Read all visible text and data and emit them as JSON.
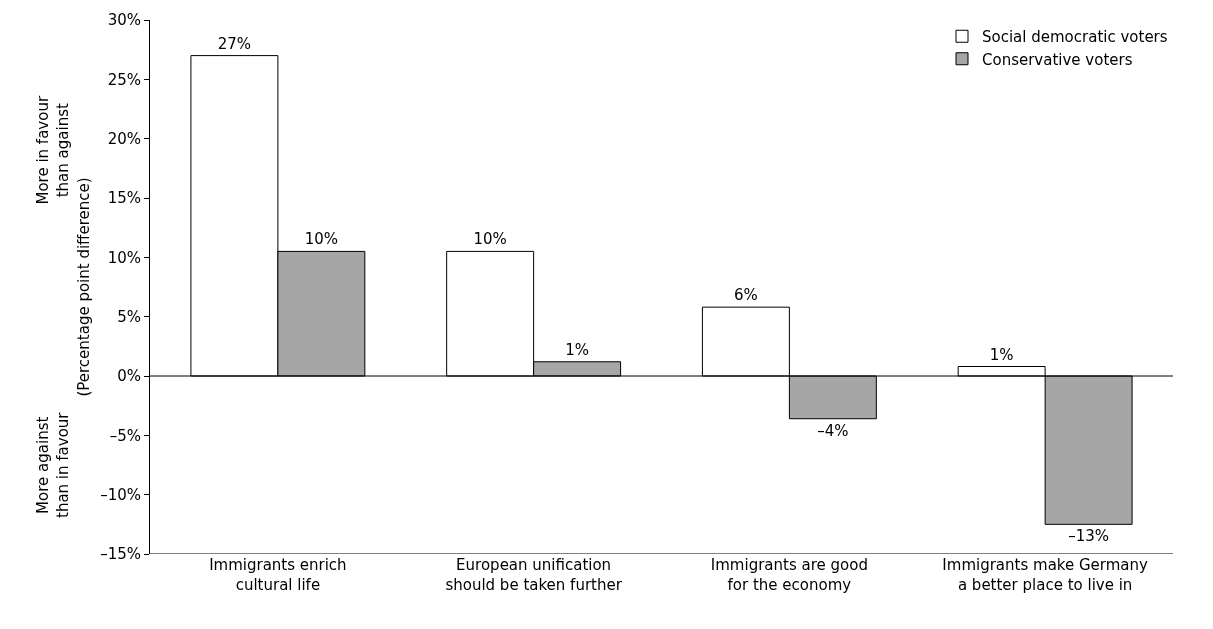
{
  "chart_data": {
    "type": "bar",
    "ylabel": "(Percentage point difference)",
    "annotations": [
      "More in favour\nthan against",
      "More against\nthan in favour"
    ],
    "categories": [
      "Immigrants enrich\ncultural life",
      "European unification\nshould be taken further",
      "Immigrants are good\nfor the economy",
      "Immigrants make Germany\na better place to live in"
    ],
    "series": [
      {
        "name": "Social democratic voters",
        "color": "#ffffff",
        "values": [
          27,
          10.5,
          5.8,
          0.8
        ],
        "value_labels": [
          "27%",
          "10%",
          "6%",
          "1%"
        ]
      },
      {
        "name": "Conservative voters",
        "color": "#a6a6a6",
        "values": [
          10.5,
          1.2,
          -3.6,
          -12.5
        ],
        "value_labels": [
          "10%",
          "1%",
          "–4%",
          "–13%"
        ]
      }
    ],
    "ylim": [
      -15,
      30
    ],
    "yticks": [
      {
        "value": -15,
        "label": "–15%"
      },
      {
        "value": -10,
        "label": "–10%"
      },
      {
        "value": -5,
        "label": "–5%"
      },
      {
        "value": 0,
        "label": "0%"
      },
      {
        "value": 5,
        "label": "5%"
      },
      {
        "value": 10,
        "label": "10%"
      },
      {
        "value": 15,
        "label": "15%"
      },
      {
        "value": 20,
        "label": "20%"
      },
      {
        "value": 25,
        "label": "25%"
      },
      {
        "value": 30,
        "label": "30%"
      }
    ],
    "ref_lines": [
      {
        "axis": "y",
        "value": 0,
        "label": null,
        "color": "#000000"
      }
    ],
    "legend": "top right"
  }
}
